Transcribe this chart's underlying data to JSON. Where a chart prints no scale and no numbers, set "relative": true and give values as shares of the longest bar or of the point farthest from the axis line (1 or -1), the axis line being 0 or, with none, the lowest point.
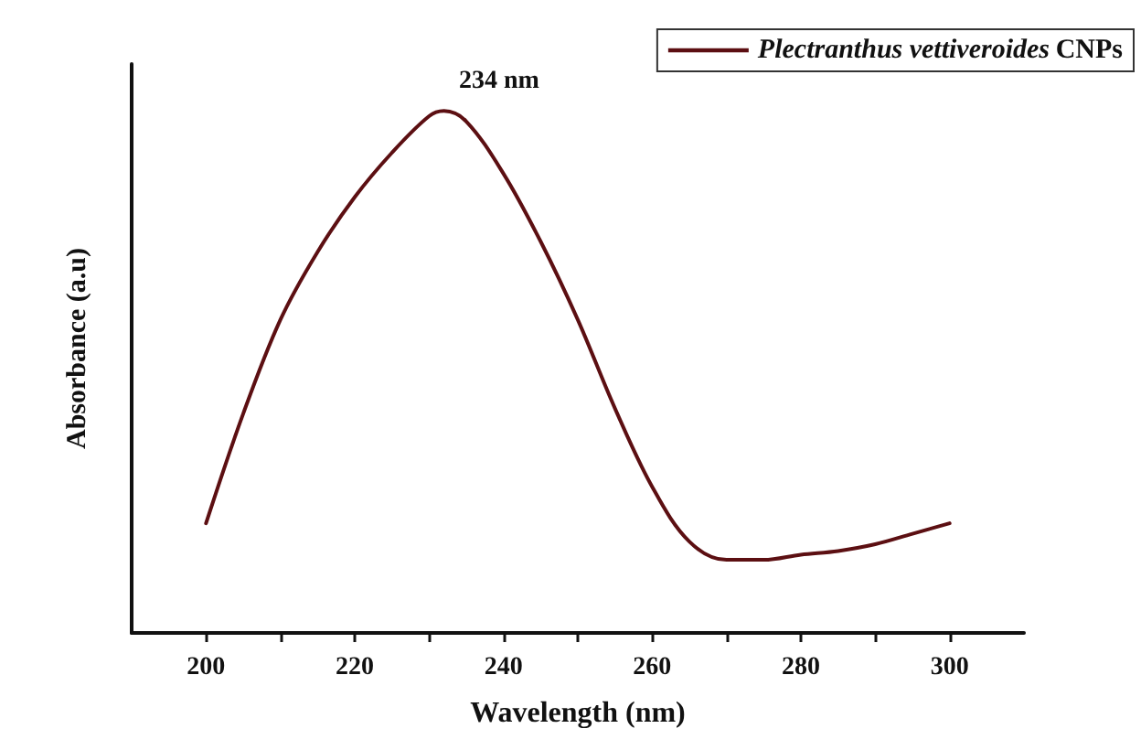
{
  "chart_data": {
    "type": "line",
    "xlabel": "Wavelength (nm)",
    "ylabel": "Absorbance (a.u)",
    "relative": true,
    "x": [
      200,
      205,
      210,
      215,
      220,
      225,
      230,
      232,
      235,
      240,
      245,
      250,
      255,
      260,
      265,
      270,
      275,
      280,
      285,
      290,
      295,
      300
    ],
    "series": [
      {
        "name": "Plectranthus vettiveroides CNPs",
        "color": "#5c0f12",
        "values": [
          0.21,
          0.42,
          0.6,
          0.73,
          0.835,
          0.92,
          0.99,
          1.0,
          0.98,
          0.88,
          0.75,
          0.6,
          0.43,
          0.28,
          0.175,
          0.14,
          0.14,
          0.15,
          0.157,
          0.17,
          0.19,
          0.21
        ]
      }
    ],
    "xlim": [
      190,
      310
    ],
    "xticks": [
      200,
      {
        "value": 210,
        "label": null
      },
      220,
      {
        "value": 230,
        "label": null
      },
      240,
      {
        "value": 250,
        "label": null
      },
      260,
      {
        "value": 270,
        "label": null
      },
      280,
      {
        "value": 290,
        "label": null
      },
      300
    ],
    "annotations": [
      {
        "text": "234 nm",
        "x": 234,
        "y": 1.0
      }
    ],
    "legend": "top right",
    "grid": false,
    "marker": "none",
    "line_style": "solid"
  }
}
